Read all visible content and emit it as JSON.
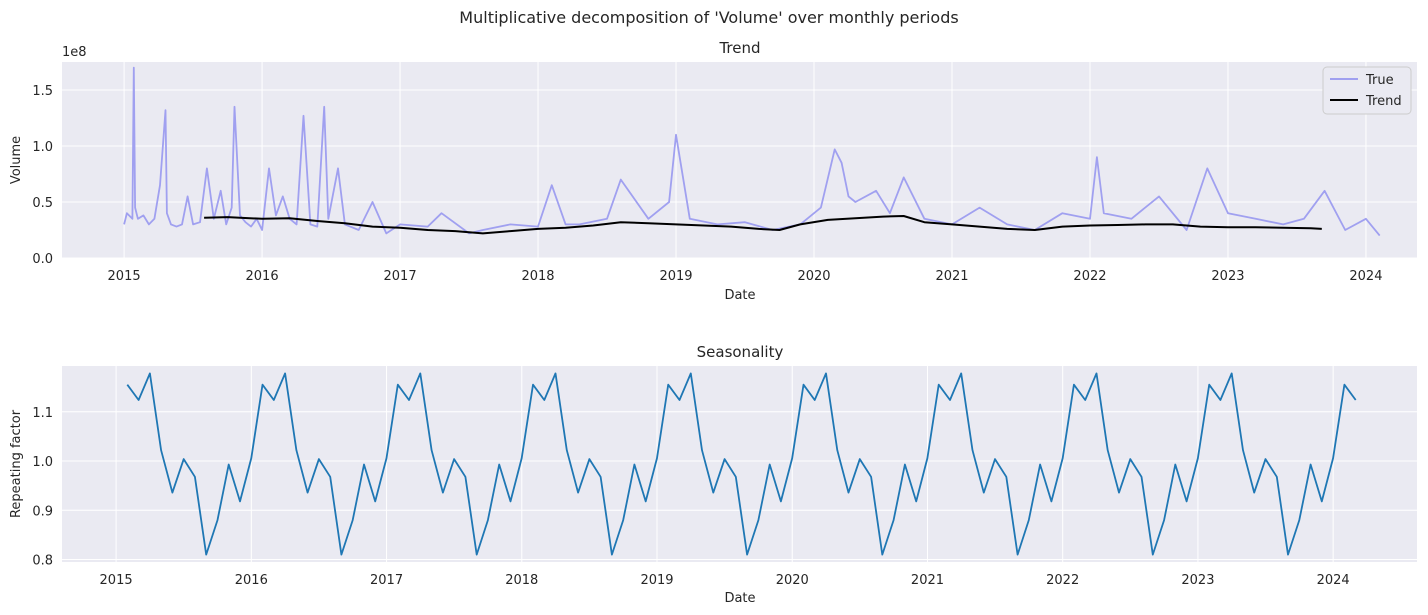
{
  "figure": {
    "suptitle": "Multiplicative decomposition of 'Volume' over monthly periods"
  },
  "chart_data": [
    {
      "type": "line",
      "title": "Trend",
      "xlabel": "Date",
      "ylabel": "Volume",
      "y_scale_label": "1e8",
      "x_ticks": [
        "2015",
        "2016",
        "2017",
        "2018",
        "2019",
        "2020",
        "2021",
        "2022",
        "2023",
        "2024"
      ],
      "x_tick_years": [
        2015,
        2016,
        2017,
        2018,
        2019,
        2020,
        2021,
        2022,
        2023,
        2024
      ],
      "xlim": [
        2014.55,
        2024.37
      ],
      "y_ticks": [
        "0.0",
        "0.5",
        "1.0",
        "1.5"
      ],
      "y_tick_values": [
        0,
        50000000,
        100000000,
        150000000
      ],
      "ylim": [
        0,
        175000000
      ],
      "grid": true,
      "legend": {
        "position": "top-right",
        "entries": [
          "True",
          "Trend"
        ]
      },
      "series": [
        {
          "name": "True",
          "color": "#a0a0f0",
          "x": [
            2015.0,
            2015.02,
            2015.06,
            2015.07,
            2015.08,
            2015.1,
            2015.14,
            2015.18,
            2015.22,
            2015.26,
            2015.3,
            2015.31,
            2015.34,
            2015.38,
            2015.42,
            2015.46,
            2015.5,
            2015.55,
            2015.6,
            2015.65,
            2015.7,
            2015.74,
            2015.78,
            2015.8,
            2015.84,
            2015.88,
            2015.92,
            2015.96,
            2016.0,
            2016.05,
            2016.1,
            2016.15,
            2016.2,
            2016.25,
            2016.3,
            2016.35,
            2016.4,
            2016.45,
            2016.48,
            2016.55,
            2016.6,
            2016.7,
            2016.8,
            2016.9,
            2017.0,
            2017.2,
            2017.3,
            2017.5,
            2017.6,
            2017.8,
            2018.0,
            2018.1,
            2018.2,
            2018.3,
            2018.5,
            2018.6,
            2018.8,
            2018.95,
            2019.0,
            2019.1,
            2019.3,
            2019.5,
            2019.7,
            2019.9,
            2020.05,
            2020.15,
            2020.2,
            2020.25,
            2020.3,
            2020.45,
            2020.55,
            2020.65,
            2020.8,
            2021.0,
            2021.2,
            2021.4,
            2021.6,
            2021.8,
            2022.0,
            2022.05,
            2022.1,
            2022.3,
            2022.5,
            2022.7,
            2022.85,
            2023.0,
            2023.2,
            2023.4,
            2023.55,
            2023.7,
            2023.85,
            2024.0,
            2024.1
          ],
          "values": [
            30000000,
            40000000,
            35000000,
            170000000,
            45000000,
            35000000,
            38000000,
            30000000,
            35000000,
            65000000,
            132000000,
            40000000,
            30000000,
            28000000,
            30000000,
            55000000,
            30000000,
            32000000,
            80000000,
            35000000,
            60000000,
            30000000,
            45000000,
            135000000,
            38000000,
            32000000,
            28000000,
            35000000,
            25000000,
            80000000,
            38000000,
            55000000,
            35000000,
            30000000,
            127000000,
            30000000,
            28000000,
            135000000,
            35000000,
            80000000,
            30000000,
            25000000,
            50000000,
            22000000,
            30000000,
            28000000,
            40000000,
            22000000,
            25000000,
            30000000,
            28000000,
            65000000,
            30000000,
            30000000,
            35000000,
            70000000,
            35000000,
            50000000,
            110000000,
            35000000,
            30000000,
            32000000,
            25000000,
            30000000,
            45000000,
            97000000,
            85000000,
            55000000,
            50000000,
            60000000,
            40000000,
            72000000,
            35000000,
            30000000,
            45000000,
            30000000,
            25000000,
            40000000,
            35000000,
            90000000,
            40000000,
            35000000,
            55000000,
            25000000,
            80000000,
            40000000,
            35000000,
            30000000,
            35000000,
            60000000,
            25000000,
            35000000,
            20000000
          ]
        },
        {
          "name": "Trend",
          "color": "#000000",
          "x": [
            2015.58,
            2015.75,
            2016.0,
            2016.2,
            2016.4,
            2016.6,
            2016.8,
            2017.0,
            2017.2,
            2017.4,
            2017.6,
            2017.8,
            2018.0,
            2018.2,
            2018.4,
            2018.6,
            2018.8,
            2019.0,
            2019.2,
            2019.4,
            2019.6,
            2019.75,
            2019.9,
            2020.1,
            2020.3,
            2020.5,
            2020.65,
            2020.8,
            2021.0,
            2021.2,
            2021.4,
            2021.6,
            2021.8,
            2022.0,
            2022.2,
            2022.4,
            2022.6,
            2022.8,
            2023.0,
            2023.2,
            2023.4,
            2023.6,
            2023.68
          ],
          "values": [
            36000000,
            36500000,
            35000000,
            35500000,
            33000000,
            31000000,
            28000000,
            27000000,
            25000000,
            24000000,
            22000000,
            24000000,
            26000000,
            27000000,
            29000000,
            32000000,
            31000000,
            30000000,
            29000000,
            28000000,
            26000000,
            25000000,
            30000000,
            34000000,
            35500000,
            37000000,
            37500000,
            32000000,
            30000000,
            28000000,
            26000000,
            25000000,
            28000000,
            29000000,
            29500000,
            30000000,
            30000000,
            28000000,
            27500000,
            27500000,
            27000000,
            26500000,
            26000000
          ]
        }
      ]
    },
    {
      "type": "line",
      "title": "Seasonality",
      "xlabel": "Date",
      "ylabel": "Repeating factor",
      "x_ticks": [
        "2015",
        "2016",
        "2017",
        "2018",
        "2019",
        "2020",
        "2021",
        "2022",
        "2023",
        "2024"
      ],
      "x_tick_years": [
        2015,
        2016,
        2017,
        2018,
        2019,
        2020,
        2021,
        2022,
        2023,
        2024
      ],
      "xlim": [
        2014.6,
        2024.62
      ],
      "y_ticks": [
        "0.8",
        "0.9",
        "1.0",
        "1.1"
      ],
      "y_tick_values": [
        0.8,
        0.9,
        1.0,
        1.1
      ],
      "ylim": [
        0.795,
        1.193
      ],
      "grid": true,
      "monthly_pattern": [
        1.155,
        1.124,
        1.178,
        1.022,
        0.936,
        1.004,
        0.968,
        0.81,
        0.88,
        0.993,
        0.918,
        1.006
      ],
      "first_period": 2015.083,
      "last_period": 2024.167,
      "series": [
        {
          "color": "#1f77b4"
        }
      ]
    }
  ]
}
